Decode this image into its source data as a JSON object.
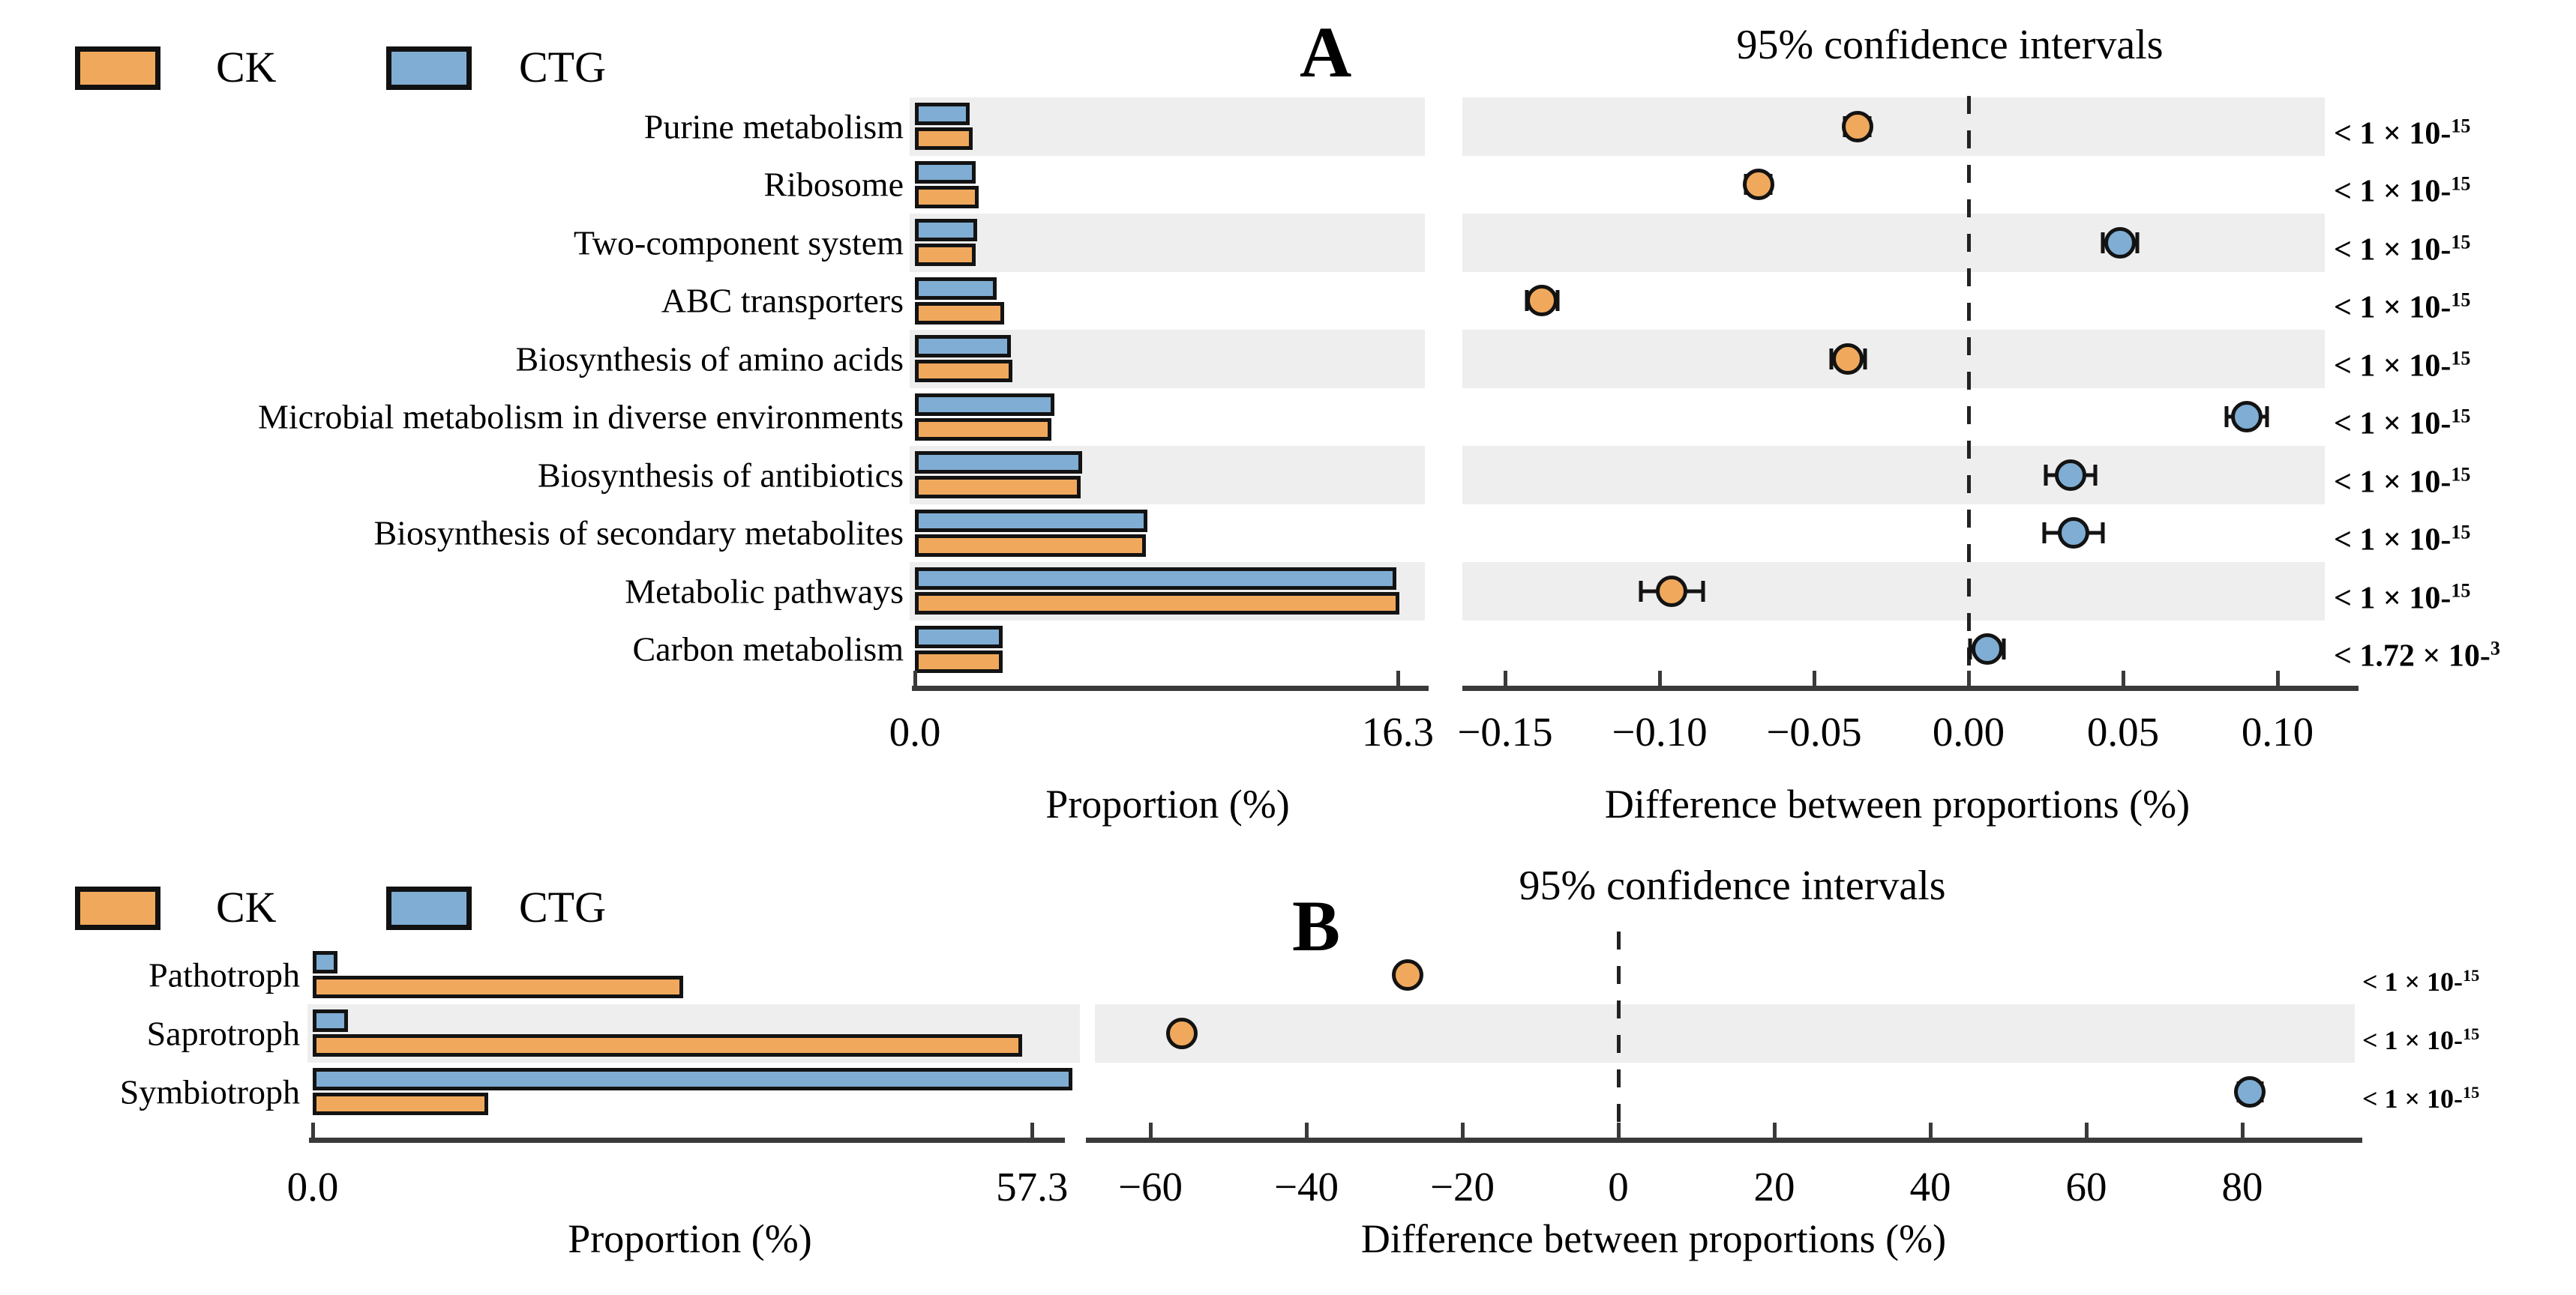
{
  "chart_data": [
    {
      "type": "bar",
      "panel_label": "A",
      "title": "95% confidence intervals",
      "legend": [
        {
          "label": "CK",
          "color": "#F0A95C"
        },
        {
          "label": "CTG",
          "color": "#7FADD3"
        }
      ],
      "categories": [
        "Purine metabolism",
        "Ribosome",
        "Two-component system",
        "ABC transporters",
        "Biosynthesis of amino acids",
        "Microbial metabolism in diverse environments",
        "Biosynthesis of antibiotics",
        "Biosynthesis of secondary metabolites",
        "Metabolic pathways",
        "Carbon metabolism"
      ],
      "series": [
        {
          "name": "CK",
          "values": [
            1.95,
            2.15,
            2.05,
            3.0,
            3.3,
            4.6,
            5.6,
            7.8,
            16.35,
            2.95
          ]
        },
        {
          "name": "CTG",
          "values": [
            1.85,
            2.05,
            2.1,
            2.75,
            3.25,
            4.7,
            5.65,
            7.85,
            16.25,
            2.95
          ]
        }
      ],
      "proportion_axis": {
        "label": "Proportion (%)",
        "tick_values": [
          0,
          16.3
        ],
        "tick_labels": [
          "0.0",
          "16.3"
        ],
        "max": 16.3
      },
      "difference_axis": {
        "label": "Difference between proportions (%)",
        "tick_values": [
          -0.15,
          -0.1,
          -0.05,
          0,
          0.05,
          0.1
        ],
        "tick_labels": [
          "−0.15",
          "−0.10",
          "−0.05",
          "0.00",
          "0.05",
          "0.10"
        ]
      },
      "difference": {
        "values": [
          -0.036,
          -0.068,
          0.049,
          -0.138,
          -0.039,
          0.09,
          0.033,
          0.034,
          -0.096,
          0.006
        ],
        "ci": [
          0.004,
          0.004,
          0.0055,
          0.005,
          0.0055,
          0.0065,
          0.008,
          0.0095,
          0.01,
          0.0055
        ],
        "enriched": [
          "CK",
          "CK",
          "CTG",
          "CK",
          "CK",
          "CTG",
          "CTG",
          "CTG",
          "CK",
          "CTG"
        ]
      },
      "p_values": [
        {
          "base": "< 1 × 10-",
          "exp": "15"
        },
        {
          "base": "< 1 × 10-",
          "exp": "15"
        },
        {
          "base": "< 1 × 10-",
          "exp": "15"
        },
        {
          "base": "< 1 × 10-",
          "exp": "15"
        },
        {
          "base": "< 1 × 10-",
          "exp": "15"
        },
        {
          "base": "< 1 × 10-",
          "exp": "15"
        },
        {
          "base": "< 1 × 10-",
          "exp": "15"
        },
        {
          "base": "< 1 × 10-",
          "exp": "15"
        },
        {
          "base": "< 1 × 10-",
          "exp": "15"
        },
        {
          "base": "< 1.72 × 10-",
          "exp": "3"
        }
      ],
      "striped_rows": [
        0,
        2,
        4,
        6,
        8
      ]
    },
    {
      "type": "bar",
      "panel_label": "B",
      "title": "95% confidence intervals",
      "legend": [
        {
          "label": "CK",
          "color": "#F0A95C"
        },
        {
          "label": "CTG",
          "color": "#7FADD3"
        }
      ],
      "categories": [
        "Pathotroph",
        "Saprotroph",
        "Symbiotroph"
      ],
      "series": [
        {
          "name": "CK",
          "values": [
            29.5,
            56.5,
            14.0
          ]
        },
        {
          "name": "CTG",
          "values": [
            2.0,
            2.8,
            60.5
          ]
        }
      ],
      "proportion_axis": {
        "label": "Proportion (%)",
        "tick_values": [
          0,
          57.3
        ],
        "tick_labels": [
          "0.0",
          "57.3"
        ],
        "max": 57.3
      },
      "difference_axis": {
        "label": "Difference between proportions (%)",
        "tick_values": [
          -60,
          -40,
          -20,
          0,
          20,
          40,
          60,
          80
        ],
        "tick_labels": [
          "−60",
          "−40",
          "−20",
          "0",
          "20",
          "40",
          "60",
          "80"
        ]
      },
      "difference": {
        "values": [
          -27,
          -56,
          81
        ],
        "ci": [
          1.2,
          1.2,
          1.5
        ],
        "enriched": [
          "CK",
          "CK",
          "CTG"
        ]
      },
      "p_values": [
        {
          "base": "< 1 × 10-",
          "exp": "15"
        },
        {
          "base": "< 1 × 10-",
          "exp": "15"
        },
        {
          "base": "< 1 × 10-",
          "exp": "15"
        }
      ],
      "striped_rows": [
        1
      ]
    }
  ]
}
